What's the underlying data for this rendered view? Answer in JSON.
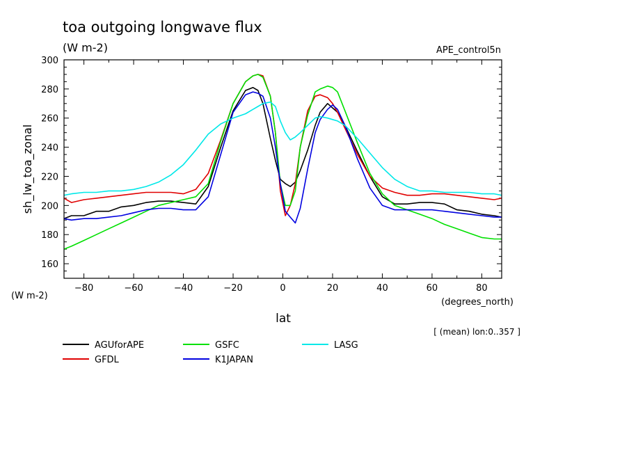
{
  "chart_data": {
    "type": "line",
    "title": "toa outgoing longwave flux",
    "units": "(W m-2)",
    "run_label": "APE_control5n",
    "xlabel": "lat",
    "xunits": "(degrees_north)",
    "ylabel": "sh_lw_toa_zonal",
    "yunits": "(W m-2)",
    "footnote": "[ (mean) lon:0..357 ]",
    "xlim": [
      -88,
      88
    ],
    "ylim": [
      150,
      300
    ],
    "xticks": [
      -80,
      -60,
      -40,
      -20,
      0,
      20,
      40,
      60,
      80
    ],
    "yticks": [
      160,
      180,
      200,
      220,
      240,
      260,
      280,
      300
    ],
    "grid": false,
    "legend_position": "bottom",
    "x": [
      -88,
      -85,
      -80,
      -75,
      -70,
      -65,
      -60,
      -55,
      -50,
      -45,
      -40,
      -35,
      -30,
      -25,
      -20,
      -15,
      -12,
      -10,
      -8,
      -5,
      -3,
      -1,
      1,
      3,
      5,
      7,
      10,
      13,
      15,
      18,
      20,
      22,
      25,
      30,
      35,
      40,
      45,
      50,
      55,
      60,
      65,
      70,
      75,
      80,
      85,
      88
    ],
    "series": [
      {
        "name": "AGUforAPE",
        "color": "#000000",
        "values": [
          191,
          193,
          193,
          196,
          196,
          199,
          200,
          202,
          203,
          203,
          202,
          201,
          213,
          240,
          265,
          279,
          281,
          279,
          270,
          246,
          231,
          218,
          215,
          213,
          216,
          224,
          238,
          255,
          264,
          270,
          267,
          264,
          255,
          237,
          220,
          206,
          201,
          201,
          202,
          202,
          201,
          197,
          196,
          194,
          193,
          192
        ]
      },
      {
        "name": "GFDL",
        "color": "#e00000",
        "values": [
          205,
          202,
          204,
          205,
          206,
          207,
          208,
          209,
          209,
          209,
          208,
          211,
          222,
          245,
          270,
          285,
          289,
          290,
          289,
          275,
          250,
          210,
          193,
          200,
          215,
          240,
          265,
          275,
          276,
          274,
          270,
          264,
          253,
          235,
          220,
          212,
          209,
          207,
          207,
          208,
          208,
          207,
          206,
          205,
          204,
          205
        ]
      },
      {
        "name": "GSFC",
        "color": "#00e000",
        "values": [
          170,
          172,
          176,
          180,
          184,
          188,
          192,
          196,
          200,
          202,
          204,
          206,
          215,
          244,
          270,
          285,
          289,
          290,
          288,
          275,
          250,
          215,
          200,
          200,
          210,
          240,
          262,
          278,
          280,
          282,
          281,
          278,
          265,
          243,
          222,
          208,
          200,
          197,
          194,
          191,
          187,
          184,
          181,
          178,
          177,
          177
        ]
      },
      {
        "name": "K1JAPAN",
        "color": "#0000e0",
        "values": [
          191,
          190,
          191,
          191,
          192,
          193,
          195,
          197,
          198,
          198,
          197,
          197,
          206,
          235,
          264,
          276,
          278,
          277,
          275,
          260,
          240,
          215,
          196,
          192,
          188,
          198,
          225,
          250,
          259,
          266,
          269,
          266,
          255,
          232,
          212,
          200,
          197,
          197,
          197,
          197,
          196,
          195,
          194,
          193,
          192,
          192
        ]
      },
      {
        "name": "LASG",
        "color": "#00e8e8",
        "values": [
          207,
          208,
          209,
          209,
          210,
          210,
          211,
          213,
          216,
          221,
          228,
          238,
          249,
          256,
          260,
          263,
          266,
          268,
          270,
          271,
          268,
          258,
          250,
          245,
          247,
          250,
          255,
          260,
          261,
          260,
          259,
          258,
          255,
          246,
          236,
          226,
          218,
          213,
          210,
          210,
          209,
          209,
          209,
          208,
          208,
          207
        ]
      }
    ]
  }
}
